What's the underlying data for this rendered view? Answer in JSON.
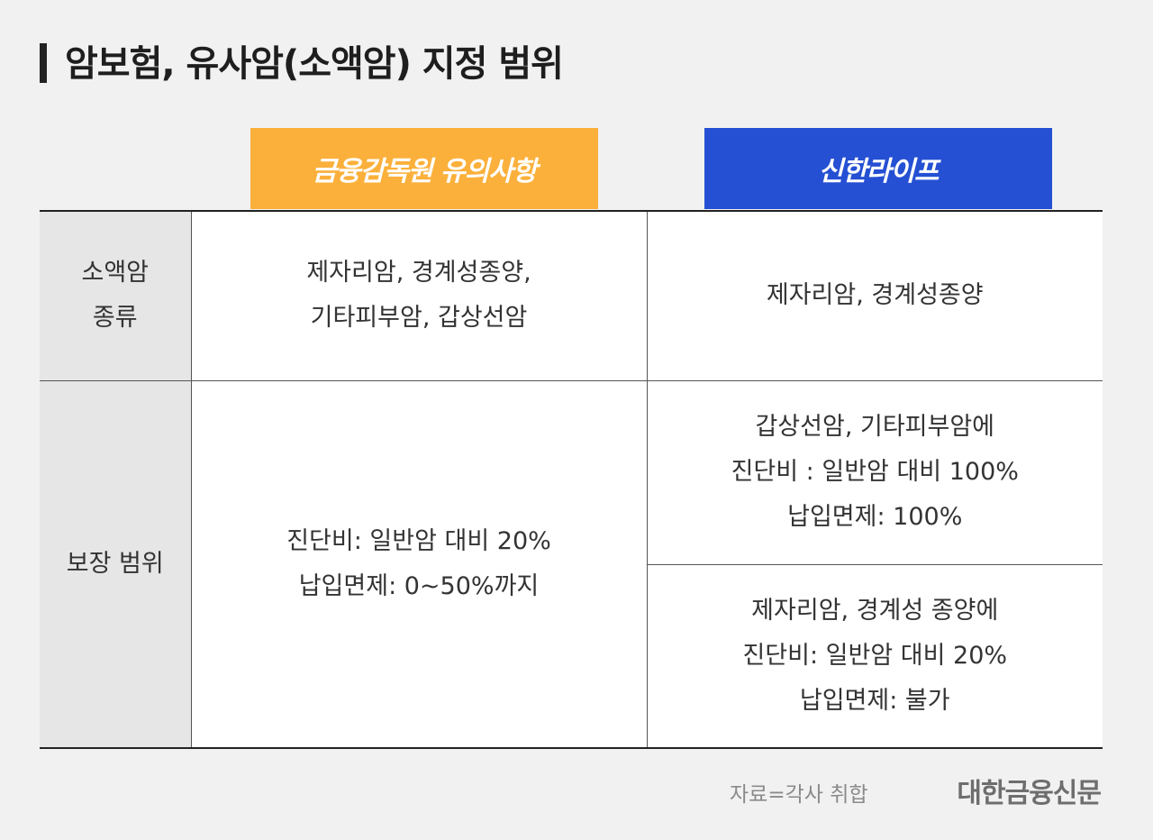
{
  "title": "암보험, 유사암(소액암) 지정 범위",
  "columns": {
    "fss": "금융감독원 유의사항",
    "shinhan": "신한라이프"
  },
  "colors": {
    "fss_header": "#fbb03b",
    "shinhan_header": "#2550d3",
    "row_header_bg": "#e6e6e6"
  },
  "rows": {
    "types": {
      "label_lines": [
        "소액암",
        "종류"
      ],
      "fss_lines": [
        "제자리암, 경계성종양,",
        "기타피부암, 갑상선암"
      ],
      "shinhan_lines": [
        "제자리암, 경계성종양"
      ]
    },
    "coverage": {
      "label": "보장 범위",
      "fss_lines": [
        "진단비: 일반암 대비 20%",
        "납입면제: 0~50%까지"
      ],
      "shinhan_a_lines": [
        "갑상선암, 기타피부암에",
        "진단비 : 일반암 대비 100%",
        "납입면제: 100%"
      ],
      "shinhan_b_lines": [
        "제자리암, 경계성 종양에",
        "진단비: 일반암 대비 20%",
        "납입면제: 불가"
      ]
    }
  },
  "footer": {
    "source": "자료=각사 취합",
    "brand": "대한금융신문"
  }
}
